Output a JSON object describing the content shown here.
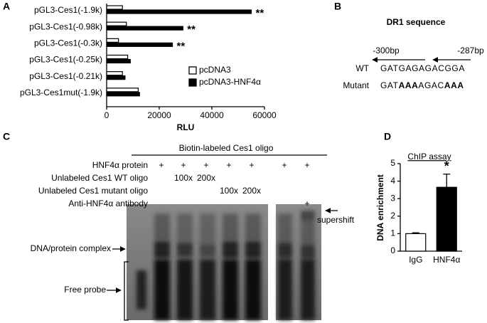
{
  "panels": [
    "A",
    "B",
    "C",
    "D"
  ],
  "chart_data": [
    {
      "type": "bar",
      "orientation": "horizontal",
      "categories": [
        "pGL3-Ces1(-1.9k)",
        "pGL3-Ces1(-0.98k)",
        "pGL3-Ces1(-0.3k)",
        "pGL3-Ces1(-0.25k)",
        "pGL3-Ces1(-0.21k)",
        "pGL3-Ces1mut(-1.9k)"
      ],
      "series": [
        {
          "name": "pcDNA3",
          "color": "#ffffff",
          "values": [
            6000,
            7500,
            4500,
            8000,
            6000,
            12000
          ]
        },
        {
          "name": "pcDNA3-HNF4α",
          "color": "#000000",
          "values": [
            55000,
            29000,
            25000,
            9000,
            7000,
            12500
          ],
          "significance": [
            "**",
            "**",
            "**",
            null,
            null,
            null
          ]
        }
      ],
      "xlabel": "RLU",
      "xlim": [
        0,
        60000
      ],
      "xticks": [
        0,
        20000,
        40000,
        60000
      ]
    },
    {
      "type": "bar",
      "title": "ChIP assay",
      "ylabel": "DNA enrichment",
      "categories": [
        "IgG",
        "HNF4α"
      ],
      "values": [
        1.0,
        3.65
      ],
      "errors": [
        0.05,
        0.75
      ],
      "colors": [
        "#ffffff",
        "#000000"
      ],
      "significance": [
        null,
        "*"
      ],
      "ylim": [
        0,
        5
      ],
      "yticks": [
        0,
        1,
        2,
        3,
        4,
        5
      ]
    }
  ],
  "dr1": {
    "title": "DR1 sequence",
    "left_position": "-300bp",
    "right_position": "-287bp",
    "rows": [
      {
        "label": "WT",
        "segments": [
          {
            "text": "GATGAGAGACGGA",
            "bold": false
          }
        ]
      },
      {
        "label": "Mutant",
        "segments": [
          {
            "text": "GAT",
            "bold": false
          },
          {
            "text": "AAA",
            "bold": true
          },
          {
            "text": "AGAC",
            "bold": false
          },
          {
            "text": "AAA",
            "bold": true
          }
        ]
      }
    ]
  },
  "emsa": {
    "title": "Biotin-labeled Ces1 oligo",
    "rows": [
      {
        "label": "HNF4α protein",
        "lanes": [
          null,
          "+",
          "+",
          "+",
          "+",
          "+",
          "+",
          "+"
        ]
      },
      {
        "label": "Unlabeled Ces1 WT oligo",
        "lanes": [
          null,
          null,
          "100x",
          "200x",
          null,
          null,
          null,
          null
        ]
      },
      {
        "label": "Unlabeled Ces1 mutant oligo",
        "lanes": [
          null,
          null,
          null,
          null,
          "100x",
          "200x",
          null,
          null
        ]
      },
      {
        "label": "Anti-HNF4α antibody",
        "lanes": [
          null,
          null,
          null,
          null,
          null,
          null,
          null,
          "+"
        ]
      }
    ],
    "complex_label": "DNA/protein complex",
    "free_label": "Free probe",
    "supershift_label": "supershift"
  }
}
